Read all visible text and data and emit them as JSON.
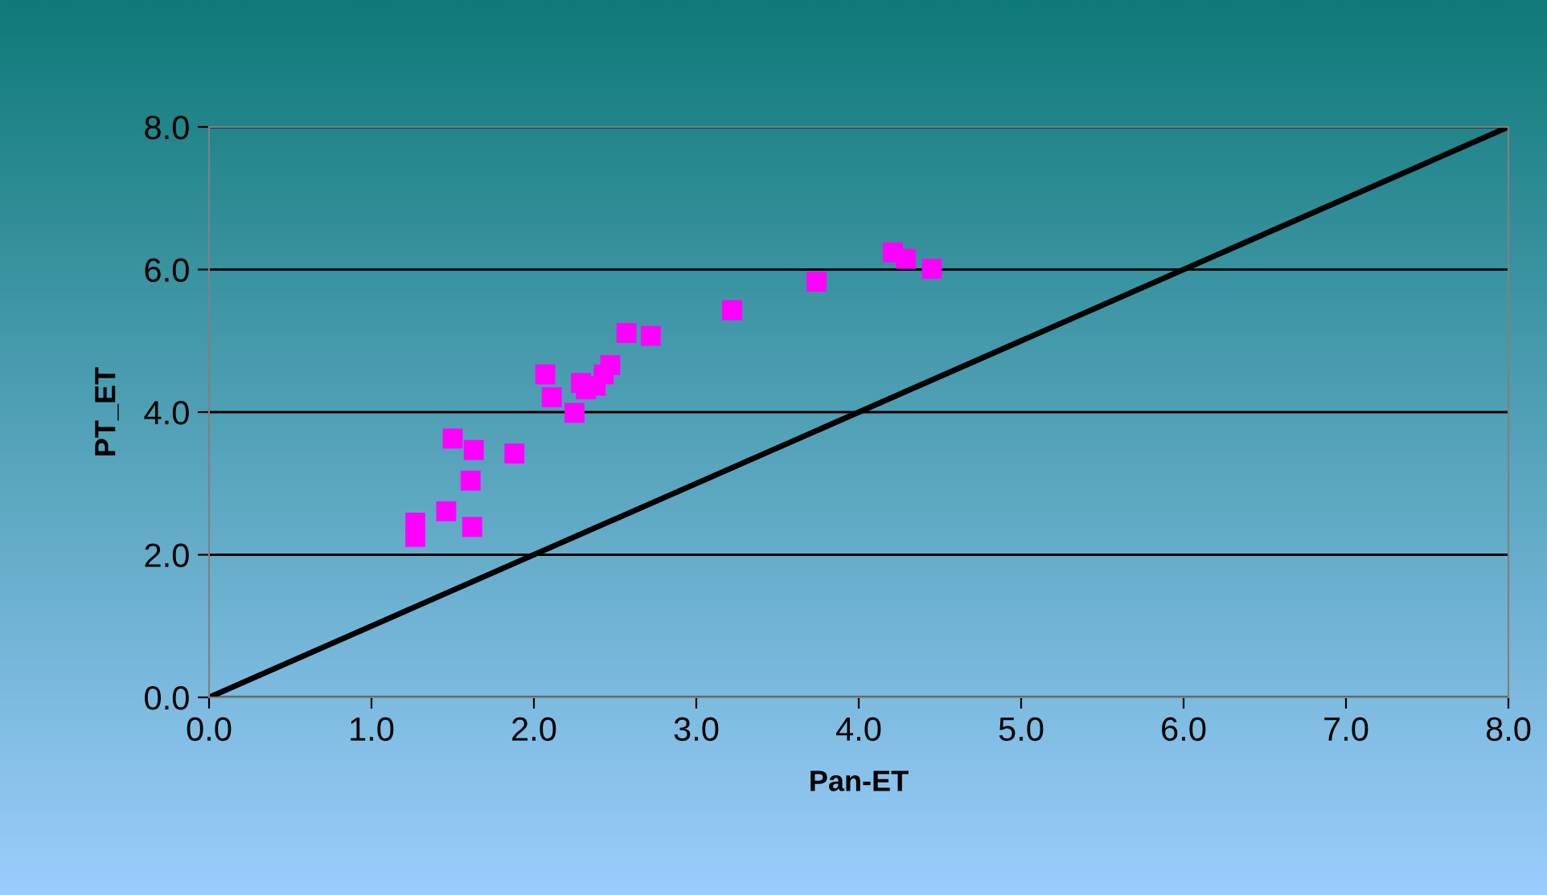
{
  "chart_data": {
    "type": "scatter",
    "xlabel": "Pan-ET",
    "ylabel": "PT_ET",
    "xlim": [
      0,
      8
    ],
    "ylim": [
      0,
      8
    ],
    "xticks": [
      {
        "value": 0,
        "label": "0.0"
      },
      {
        "value": 1,
        "label": "1.0"
      },
      {
        "value": 2,
        "label": "2.0"
      },
      {
        "value": 3,
        "label": "3.0"
      },
      {
        "value": 4,
        "label": "4.0"
      },
      {
        "value": 5,
        "label": "5.0"
      },
      {
        "value": 6,
        "label": "6.0"
      },
      {
        "value": 7,
        "label": "7.0"
      },
      {
        "value": 8,
        "label": "8.0"
      }
    ],
    "yticks": [
      {
        "value": 0,
        "label": "0.0"
      },
      {
        "value": 2,
        "label": "2.0"
      },
      {
        "value": 4,
        "label": "4.0"
      },
      {
        "value": 6,
        "label": "6.0"
      },
      {
        "value": 8,
        "label": "8.0"
      }
    ],
    "grid": "y",
    "legend": false,
    "marker": "square",
    "series": [
      {
        "color": "#ff00ff",
        "x": [
          1.27,
          1.27,
          1.46,
          1.5,
          1.61,
          1.63,
          1.62,
          1.88,
          2.07,
          2.11,
          2.25,
          2.29,
          2.32,
          2.38,
          2.43,
          2.47,
          2.57,
          2.72,
          3.22,
          3.74,
          4.21,
          4.29,
          4.45
        ],
        "values": [
          2.45,
          2.25,
          2.61,
          3.63,
          3.04,
          3.47,
          2.39,
          3.42,
          4.53,
          4.21,
          3.99,
          4.41,
          4.32,
          4.37,
          4.53,
          4.66,
          5.11,
          5.07,
          5.43,
          5.83,
          6.24,
          6.15,
          6.01
        ]
      },
      {
        "type": "line",
        "color": "#000000",
        "line_style": "solid",
        "marker": "none",
        "x": [
          0,
          8
        ],
        "values": [
          0,
          8
        ]
      }
    ]
  }
}
